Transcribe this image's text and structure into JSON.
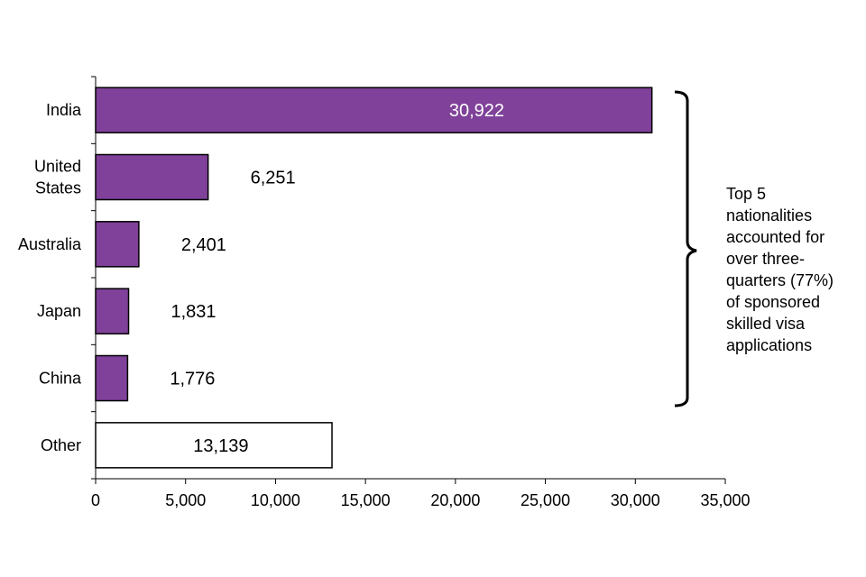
{
  "chart_data": {
    "type": "bar",
    "orientation": "horizontal",
    "categories": [
      "India",
      "United\nStates",
      "Australia",
      "Japan",
      "China",
      "Other"
    ],
    "values": [
      30922,
      6251,
      2401,
      1831,
      1776,
      13139
    ],
    "value_labels": [
      "30,922",
      "6,251",
      "2,401",
      "1,831",
      "1,776",
      "13,139"
    ],
    "xlim": [
      0,
      35000
    ],
    "xticks": [
      0,
      5000,
      10000,
      15000,
      20000,
      25000,
      30000,
      35000
    ],
    "xtick_labels": [
      "0",
      "5,000",
      "10,000",
      "15,000",
      "20,000",
      "25,000",
      "30,000",
      "35,000"
    ],
    "bar_colors": [
      "#7f4199",
      "#7f4199",
      "#7f4199",
      "#7f4199",
      "#7f4199",
      "#ffffff"
    ],
    "grid": false,
    "annotation": "Top 5\nnationalities\naccounted for\nover three-\nquarters (77%)\nof sponsored\nskilled visa\napplications"
  }
}
